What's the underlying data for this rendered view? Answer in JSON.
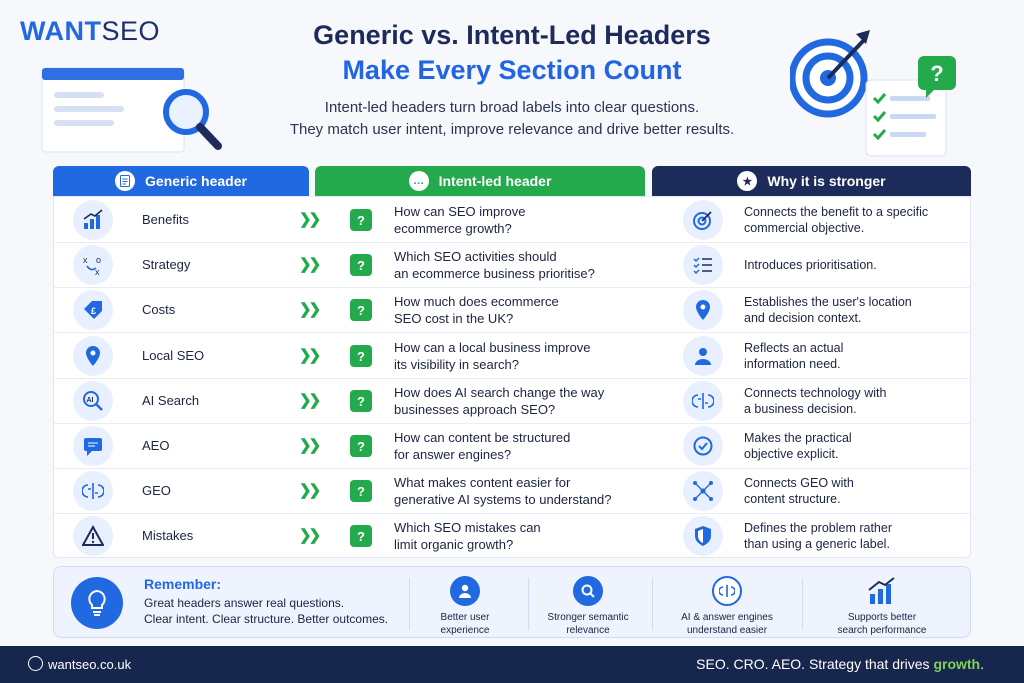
{
  "brand": {
    "want": "WANT",
    "seo": "SEO"
  },
  "title": {
    "line1": "Generic vs. Intent-Led Headers",
    "line2": "Make Every Section Count"
  },
  "subtitle": {
    "line1": "Intent-led headers turn broad labels into clear questions.",
    "line2": "They match user intent, improve relevance and drive better results."
  },
  "columns": {
    "generic": "Generic header",
    "intent": "Intent-led header",
    "why": "Why it is stronger"
  },
  "rows": [
    {
      "generic": "Benefits",
      "icon": "chart-icon",
      "q1": "How can SEO improve",
      "q2": "ecommerce growth?",
      "w1": "Connects the benefit to a specific",
      "w2": "commercial objective.",
      "wicon": "target-icon"
    },
    {
      "generic": "Strategy",
      "icon": "strategy-icon",
      "q1": "Which SEO activities should",
      "q2": "an ecommerce business prioritise?",
      "w1": "Introduces prioritisation.",
      "w2": "",
      "wicon": "checklist-icon"
    },
    {
      "generic": "Costs",
      "icon": "price-tag-icon",
      "q1": "How much does ecommerce",
      "q2": "SEO cost in the UK?",
      "w1": "Establishes the user's location",
      "w2": "and decision context.",
      "wicon": "location-pin-icon"
    },
    {
      "generic": "Local SEO",
      "icon": "location-pin-icon",
      "q1": "How can a local business improve",
      "q2": "its visibility in search?",
      "w1": "Reflects an actual",
      "w2": "information need.",
      "wicon": "user-icon"
    },
    {
      "generic": "AI Search",
      "icon": "ai-search-icon",
      "q1": "How does AI search change the way",
      "q2": "businesses approach SEO?",
      "w1": "Connects technology with",
      "w2": "a business decision.",
      "wicon": "brain-icon"
    },
    {
      "generic": "AEO",
      "icon": "chat-icon",
      "q1": "How can content be structured",
      "q2": "for answer engines?",
      "w1": "Makes the practical",
      "w2": "objective explicit.",
      "wicon": "check-circle-icon"
    },
    {
      "generic": "GEO",
      "icon": "brain-icon",
      "q1": "What makes content easier for",
      "q2": "generative AI systems to understand?",
      "w1": "Connects GEO with",
      "w2": "content structure.",
      "wicon": "network-icon"
    },
    {
      "generic": "Mistakes",
      "icon": "warning-icon",
      "q1": "Which SEO mistakes can",
      "q2": "limit organic growth?",
      "w1": "Defines the problem rather",
      "w2": "than using a generic label.",
      "wicon": "shield-icon"
    }
  ],
  "remember": {
    "title": "Remember:",
    "line1": "Great headers answer real questions.",
    "line2": "Clear intent. Clear structure. Better outcomes."
  },
  "benefits": [
    {
      "l1": "Better user",
      "l2": "experience"
    },
    {
      "l1": "Stronger semantic",
      "l2": "relevance"
    },
    {
      "l1": "AI & answer engines",
      "l2": "understand easier"
    },
    {
      "l1": "Supports better",
      "l2": "search performance"
    }
  ],
  "footer": {
    "site": "wantseo.co.uk",
    "tag_pre": "SEO. CRO. AEO. Strategy that drives ",
    "tag_em": "growth",
    "tag_post": "."
  },
  "colors": {
    "blue": "#2169e0",
    "green": "#24a94c",
    "navy": "#1c2b5a"
  }
}
